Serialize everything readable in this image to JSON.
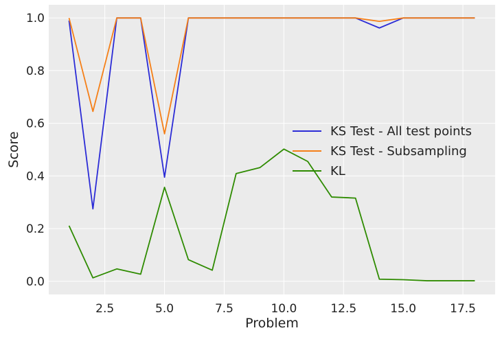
{
  "chart_data": {
    "type": "line",
    "title": "",
    "xlabel": "Problem",
    "ylabel": "Score",
    "xlim": [
      0.15,
      18.85
    ],
    "ylim": [
      -0.05,
      1.05
    ],
    "x_ticks": [
      2.5,
      5.0,
      7.5,
      10.0,
      12.5,
      15.0,
      17.5
    ],
    "x_tick_labels": [
      "2.5",
      "5.0",
      "7.5",
      "10.0",
      "12.5",
      "15.0",
      "17.5"
    ],
    "y_ticks": [
      0.0,
      0.2,
      0.4,
      0.6,
      0.8,
      1.0
    ],
    "y_tick_labels": [
      "0.0",
      "0.2",
      "0.4",
      "0.6",
      "0.8",
      "1.0"
    ],
    "grid": true,
    "background": "#ebebeb",
    "legend_position": "center-right",
    "x": [
      1,
      2,
      3,
      4,
      5,
      6,
      7,
      8,
      9,
      10,
      11,
      12,
      13,
      14,
      15,
      16,
      17,
      18
    ],
    "series": [
      {
        "name": "KS Test - All test points",
        "color": "#2b2bd6",
        "values": [
          0.99,
          0.275,
          1.0,
          1.0,
          0.395,
          1.0,
          1.0,
          1.0,
          1.0,
          1.0,
          1.0,
          1.0,
          1.0,
          0.962,
          1.0,
          1.0,
          1.0,
          1.0
        ]
      },
      {
        "name": "KS Test - Subsampling",
        "color": "#f57f17",
        "values": [
          1.0,
          0.645,
          1.0,
          1.0,
          0.56,
          1.0,
          1.0,
          1.0,
          1.0,
          1.0,
          1.0,
          1.0,
          1.0,
          0.987,
          1.0,
          1.0,
          1.0,
          1.0
        ]
      },
      {
        "name": "KL",
        "color": "#2e8b00",
        "values": [
          0.211,
          0.013,
          0.047,
          0.027,
          0.357,
          0.082,
          0.042,
          0.409,
          0.432,
          0.502,
          0.455,
          0.32,
          0.316,
          0.008,
          0.006,
          0.002,
          0.002,
          0.002
        ]
      }
    ]
  }
}
